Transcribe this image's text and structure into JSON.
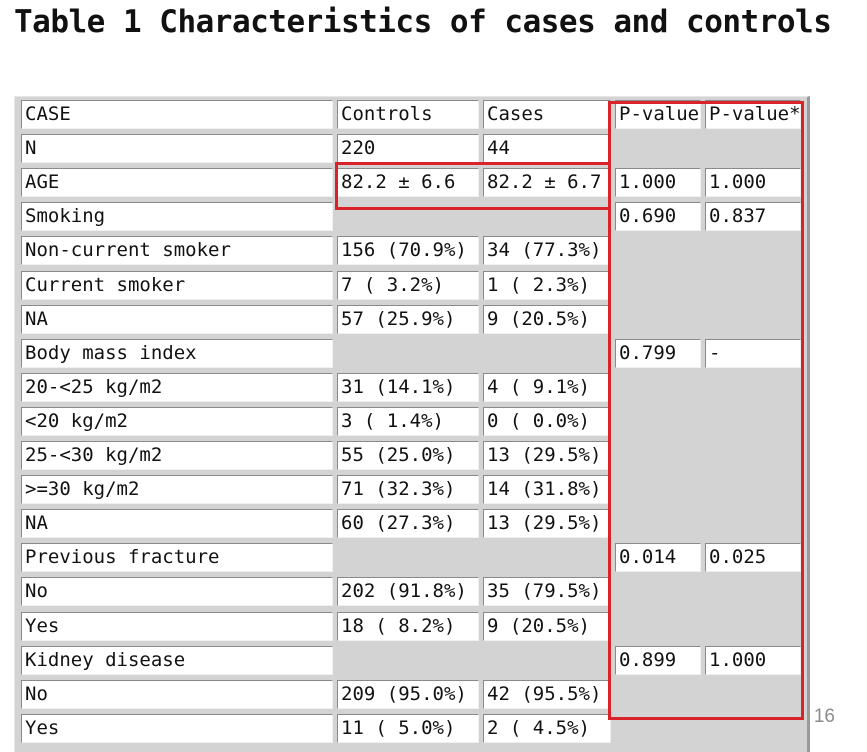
{
  "title": "Table 1 Characteristics of cases and controls",
  "page_number": "16",
  "header": [
    "CASE",
    "Controls",
    "Cases",
    "P-value",
    "P-value*"
  ],
  "rows": [
    [
      "N",
      "220",
      "44",
      "",
      ""
    ],
    [
      "AGE",
      "82.2 ± 6.6",
      "82.2 ± 6.7",
      "1.000",
      "1.000"
    ],
    [
      "Smoking",
      "",
      "",
      "0.690",
      "0.837"
    ],
    [
      "Non-current smoker",
      "156 (70.9%)",
      "34 (77.3%)",
      "",
      ""
    ],
    [
      "Current smoker",
      "7 ( 3.2%)",
      "1 ( 2.3%)",
      "",
      ""
    ],
    [
      "NA",
      "57 (25.9%)",
      "9 (20.5%)",
      "",
      ""
    ],
    [
      "Body mass index",
      "",
      "",
      "0.799",
      "-"
    ],
    [
      "20-<25 kg/m2",
      "31 (14.1%)",
      "4 ( 9.1%)",
      "",
      ""
    ],
    [
      "<20 kg/m2",
      "3 ( 1.4%)",
      "0 ( 0.0%)",
      "",
      ""
    ],
    [
      "25-<30 kg/m2",
      "55 (25.0%)",
      "13 (29.5%)",
      "",
      ""
    ],
    [
      ">=30 kg/m2",
      "71 (32.3%)",
      "14 (31.8%)",
      "",
      ""
    ],
    [
      "NA",
      "60 (27.3%)",
      "13 (29.5%)",
      "",
      ""
    ],
    [
      "Previous fracture",
      "",
      "",
      "0.014",
      "0.025"
    ],
    [
      "No",
      "202 (91.8%)",
      "35 (79.5%)",
      "",
      ""
    ],
    [
      "Yes",
      "18 ( 8.2%)",
      "9 (20.5%)",
      "",
      ""
    ],
    [
      "Kidney disease",
      "",
      "",
      "0.899",
      "1.000"
    ],
    [
      "No",
      "209 (95.0%)",
      "42 (95.5%)",
      "",
      ""
    ],
    [
      "Yes",
      "11 ( 5.0%)",
      "2 ( 4.5%)",
      "",
      ""
    ]
  ],
  "highlight_color": "#d9232b"
}
